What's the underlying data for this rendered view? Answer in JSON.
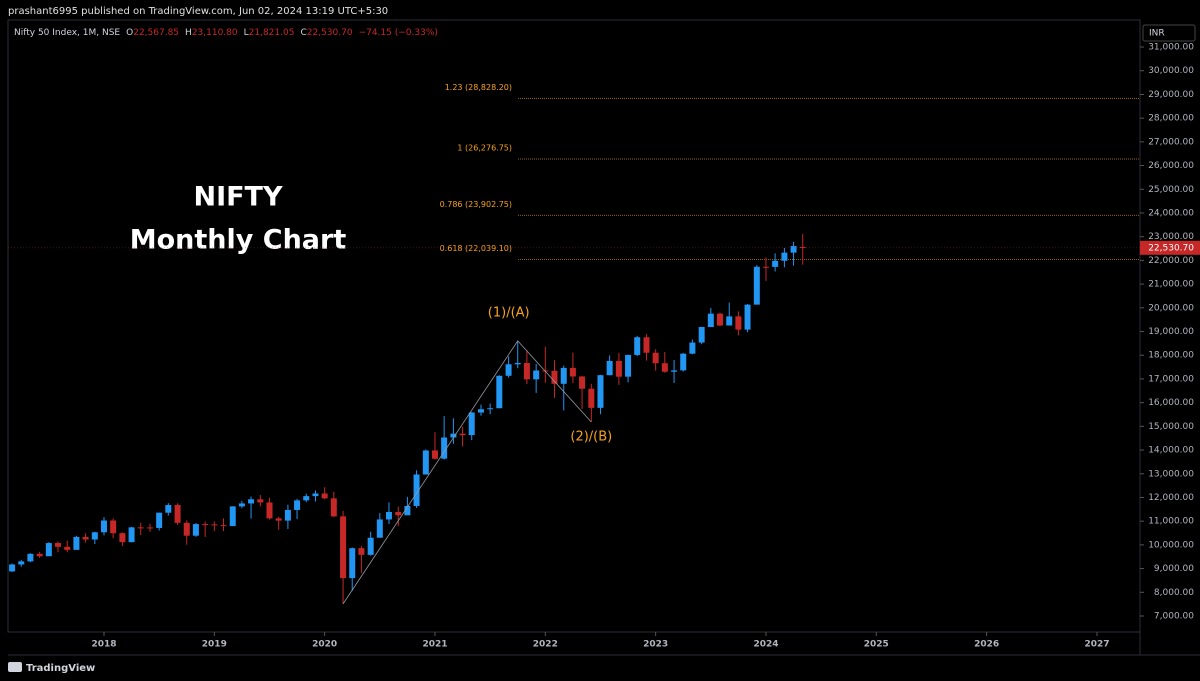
{
  "chart_data": {
    "type": "candlestick",
    "header": "prashant6995 published on TradingView.com, Jun 02, 2024 13:19 UTC+5:30",
    "legend": {
      "symbol": "Nifty 50 Index, 1M, NSE",
      "items": [
        {
          "key": "O",
          "value": "22,567.85"
        },
        {
          "key": "H",
          "value": "23,110.80"
        },
        {
          "key": "L",
          "value": "21,821.05"
        },
        {
          "key": "C",
          "value": "22,530.70"
        }
      ],
      "change": "−74.15 (−0.33%)"
    },
    "title": "NIFTY",
    "subtitle": "Monthly Chart",
    "currency": "INR",
    "footer": "TradingView",
    "up_color": "#2196f3",
    "down_color": "#c62828",
    "annotations": [
      "(1)/(A)",
      "(2)/(B)"
    ],
    "annotation_color": "#f7a21b",
    "fib_levels": [
      {
        "label": "1.23 (28,828.20)",
        "value": 28828.2
      },
      {
        "label": "1 (26,276.75)",
        "value": 26276.75
      },
      {
        "label": "0.786 (23,902.75)",
        "value": 23902.75
      },
      {
        "label": "0.618 (22,039.10)",
        "value": 22039.1
      }
    ],
    "last_price": {
      "value": 22530.7,
      "label": "22,530.70"
    },
    "xlim": [
      2017.13,
      2027.39
    ],
    "xticks": [
      2018,
      2019,
      2020,
      2021,
      2022,
      2023,
      2024,
      2025,
      2026,
      2027
    ],
    "ylim": [
      6325,
      32140
    ],
    "yticks": [
      {
        "value": 7000,
        "label": "7,000.00"
      },
      {
        "value": 8000,
        "label": "8,000.00"
      },
      {
        "value": 9000,
        "label": "9,000.00"
      },
      {
        "value": 10000,
        "label": "10,000.00"
      },
      {
        "value": 11000,
        "label": "11,000.00"
      },
      {
        "value": 12000,
        "label": "12,000.00"
      },
      {
        "value": 13000,
        "label": "13,000.00"
      },
      {
        "value": 14000,
        "label": "14,000.00"
      },
      {
        "value": 15000,
        "label": "15,000.00"
      },
      {
        "value": 16000,
        "label": "16,000.00"
      },
      {
        "value": 17000,
        "label": "17,000.00"
      },
      {
        "value": 18000,
        "label": "18,000.00"
      },
      {
        "value": 19000,
        "label": "19,000.00"
      },
      {
        "value": 20000,
        "label": "20,000.00"
      },
      {
        "value": 21000,
        "label": "21,000.00"
      },
      {
        "value": 22000,
        "label": "22,000.00"
      },
      {
        "value": 23000,
        "label": "23,000.00"
      },
      {
        "value": 24000,
        "label": "24,000.00"
      },
      {
        "value": 25000,
        "label": "25,000.00"
      },
      {
        "value": 26000,
        "label": "26,000.00"
      },
      {
        "value": 27000,
        "label": "27,000.00"
      },
      {
        "value": 28000,
        "label": "28,000.00"
      },
      {
        "value": 29000,
        "label": "29,000.00"
      },
      {
        "value": 30000,
        "label": "30,000.00"
      },
      {
        "value": 31000,
        "label": "31,000.00"
      }
    ],
    "x": [
      2017.167,
      2017.25,
      2017.333,
      2017.417,
      2017.5,
      2017.583,
      2017.667,
      2017.75,
      2017.833,
      2017.917,
      2018.0,
      2018.083,
      2018.167,
      2018.25,
      2018.333,
      2018.417,
      2018.5,
      2018.583,
      2018.667,
      2018.75,
      2018.833,
      2018.917,
      2019.0,
      2019.083,
      2019.167,
      2019.25,
      2019.333,
      2019.417,
      2019.5,
      2019.583,
      2019.667,
      2019.75,
      2019.833,
      2019.917,
      2020.0,
      2020.083,
      2020.167,
      2020.25,
      2020.333,
      2020.417,
      2020.5,
      2020.583,
      2020.667,
      2020.75,
      2020.833,
      2020.917,
      2021.0,
      2021.083,
      2021.167,
      2021.25,
      2021.333,
      2021.417,
      2021.5,
      2021.583,
      2021.667,
      2021.75,
      2021.833,
      2021.917,
      2022.0,
      2022.083,
      2022.167,
      2022.25,
      2022.333,
      2022.417,
      2022.5,
      2022.583,
      2022.667,
      2022.75,
      2022.833,
      2022.917,
      2023.0,
      2023.083,
      2023.167,
      2023.25,
      2023.333,
      2023.417,
      2023.5,
      2023.583,
      2023.667,
      2023.75,
      2023.833,
      2023.917,
      2024.0,
      2024.083,
      2024.167,
      2024.25,
      2024.333
    ],
    "open": [
      8880,
      9174,
      9304,
      9621,
      9521,
      10077,
      9918,
      9789,
      10335,
      10227,
      10531,
      11028,
      10493,
      10114,
      10739,
      10736,
      10714,
      11357,
      11681,
      10930,
      10387,
      10877,
      10863,
      10831,
      10793,
      11624,
      11748,
      11923,
      11789,
      11118,
      11023,
      11474,
      11877,
      12056,
      12168,
      11962,
      11202,
      8598,
      9860,
      9580,
      10302,
      11073,
      11388,
      11248,
      11642,
      12969,
      13982,
      13635,
      14529,
      14691,
      14631,
      15583,
      15722,
      15763,
      17132,
      17618,
      17672,
      16983,
      17354,
      17340,
      16794,
      17465,
      17103,
      16585,
      15780,
      17158,
      17759,
      17094,
      18012,
      18758,
      18105,
      17662,
      17304,
      17360,
      18065,
      18534,
      19189,
      19754,
      19254,
      19638,
      19080,
      20133,
      21731,
      21726,
      21983,
      22327,
      22567.85
    ],
    "high": [
      9218,
      9367,
      9650,
      9709,
      10115,
      10138,
      10179,
      10384,
      10490,
      10553,
      11172,
      11117,
      10526,
      10760,
      10929,
      10893,
      11366,
      11760,
      11752,
      11036,
      10922,
      10985,
      10988,
      11118,
      11630,
      11856,
      12041,
      12103,
      11982,
      11182,
      11695,
      11946,
      12159,
      12294,
      12431,
      12246,
      11433,
      9889,
      9951,
      10554,
      11341,
      11795,
      11619,
      12026,
      13146,
      14024,
      14754,
      15432,
      15337,
      14984,
      15606,
      15916,
      15962,
      17154,
      17948,
      18604,
      18210,
      17640,
      18351,
      17794,
      17559,
      18115,
      17132,
      16794,
      17172,
      17992,
      18096,
      18022,
      18816,
      18887,
      18251,
      18134,
      17799,
      18089,
      18662,
      19201,
      19991,
      19795,
      20222,
      19849,
      20158,
      21801,
      22124,
      22297,
      22527,
      22783,
      23110.8
    ],
    "low": [
      8860,
      9075,
      9270,
      9448,
      9543,
      9686,
      9688,
      9831,
      10094,
      10033,
      10404,
      10277,
      9952,
      10112,
      10418,
      10551,
      10605,
      11234,
      10850,
      10005,
      10341,
      10334,
      10583,
      10585,
      10817,
      11550,
      11108,
      11625,
      11070,
      10637,
      10670,
      11090,
      11802,
      11832,
      11929,
      11175,
      7511,
      8055,
      8807,
      9544,
      10300,
      10882,
      10790,
      11348,
      11558,
      12963,
      13597,
      13597,
      14264,
      14152,
      14417,
      15451,
      15514,
      15835,
      17055,
      17452,
      16782,
      16410,
      16837,
      16203,
      15671,
      16824,
      15736,
      15183,
      15512,
      17155,
      16748,
      16855,
      17959,
      17774,
      17353,
      17255,
      16828,
      17312,
      18042,
      18464,
      19234,
      19223,
      19255,
      18837,
      18973,
      20183,
      21137,
      21530,
      21710,
      21777,
      21821.05
    ],
    "close": [
      9174,
      9304,
      9621,
      9521,
      10077,
      9918,
      9789,
      10335,
      10227,
      10531,
      11028,
      10493,
      10114,
      10739,
      10736,
      10714,
      11357,
      11681,
      10930,
      10387,
      10877,
      10863,
      10831,
      10793,
      11624,
      11748,
      11923,
      11789,
      11118,
      11023,
      11474,
      11877,
      12056,
      12168,
      11962,
      11202,
      8598,
      9860,
      9580,
      10302,
      11073,
      11388,
      11248,
      11642,
      12969,
      13982,
      13635,
      14529,
      14691,
      14631,
      15583,
      15722,
      15763,
      17132,
      17618,
      17672,
      16983,
      17354,
      17340,
      16794,
      17465,
      17103,
      16585,
      15780,
      17158,
      17759,
      17094,
      18012,
      18758,
      18105,
      17662,
      17304,
      17360,
      18065,
      18534,
      19189,
      19754,
      19254,
      19638,
      19080,
      20133,
      21731,
      21726,
      21983,
      22327,
      22605,
      22530.7
    ]
  }
}
